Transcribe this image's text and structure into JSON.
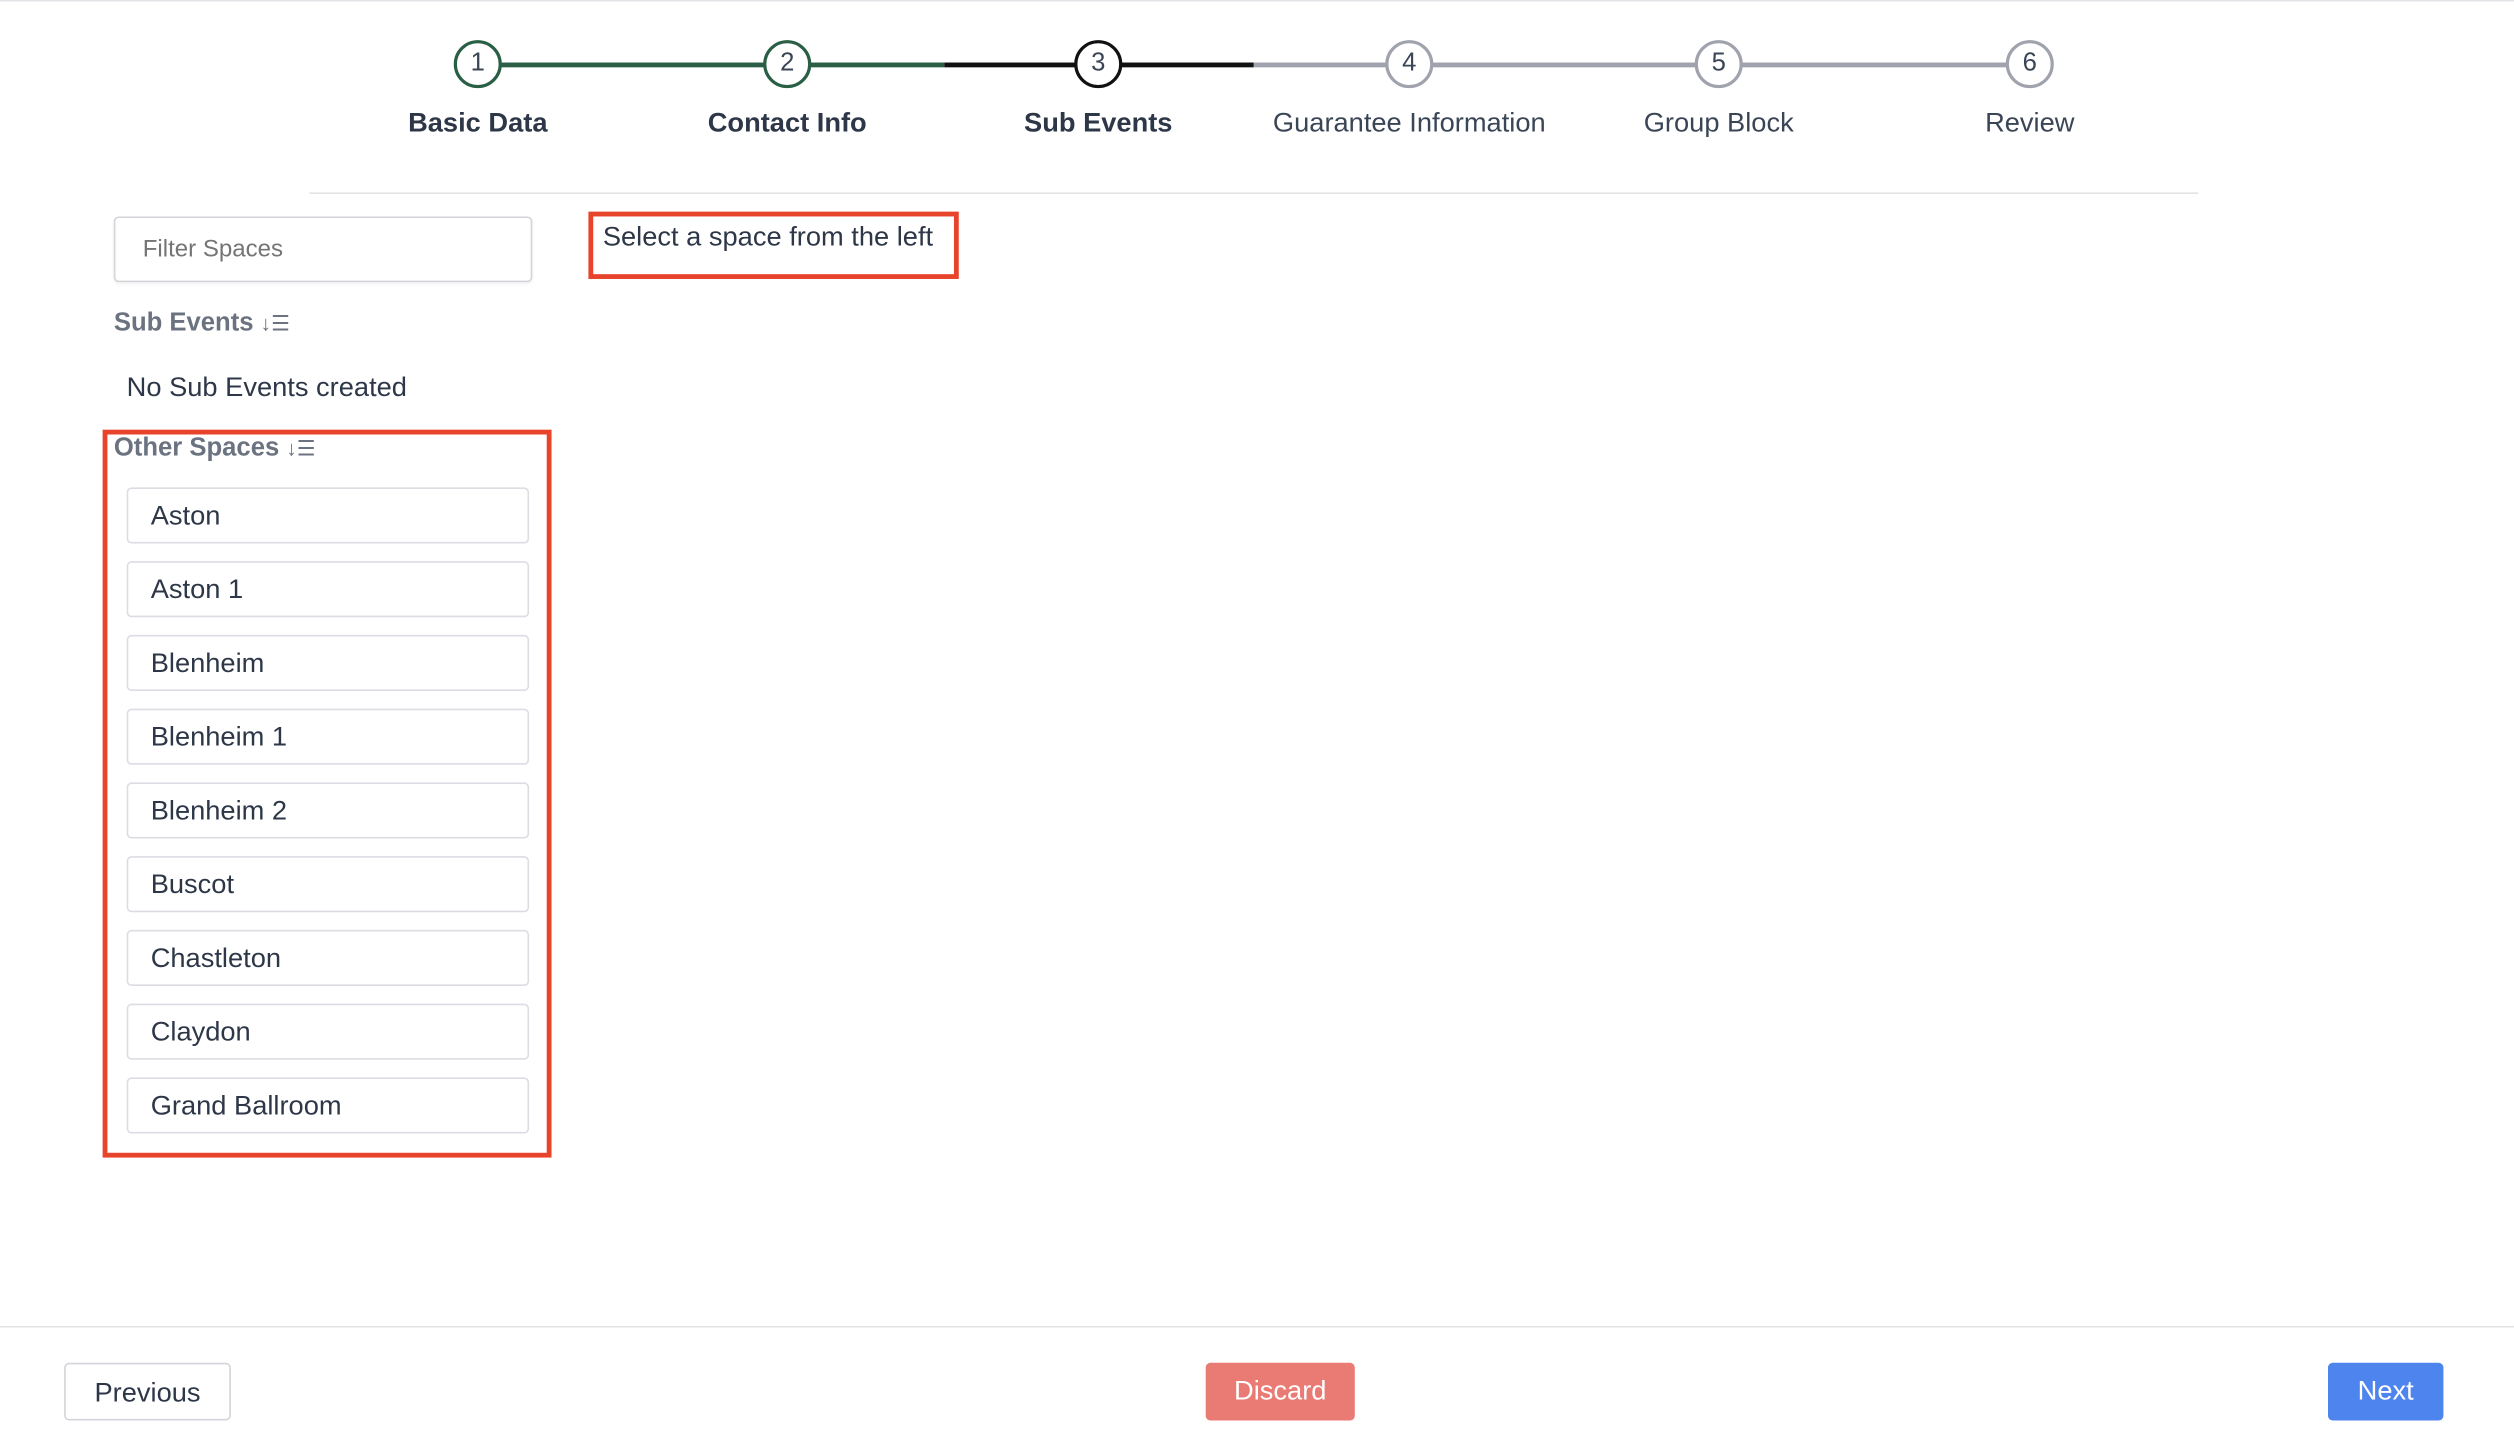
{
  "stepper": {
    "steps": [
      {
        "number": "1",
        "label": "Basic Data",
        "state": "completed"
      },
      {
        "number": "2",
        "label": "Contact Info",
        "state": "completed"
      },
      {
        "number": "3",
        "label": "Sub Events",
        "state": "current"
      },
      {
        "number": "4",
        "label": "Guarantee Information",
        "state": "upcoming"
      },
      {
        "number": "5",
        "label": "Group Block",
        "state": "upcoming"
      },
      {
        "number": "6",
        "label": "Review",
        "state": "upcoming"
      }
    ],
    "colors": {
      "completed": "#2a5e45",
      "current": "#111111",
      "upcoming": "#a0a3ad"
    }
  },
  "sidebar": {
    "filter_placeholder": "Filter Spaces",
    "sub_events_heading": "Sub Events",
    "sub_events_empty": "No Sub Events created",
    "other_spaces_heading": "Other Spaces",
    "sort_icon": "sort-descending-icon",
    "other_spaces": [
      "Aston",
      "Aston 1",
      "Blenheim",
      "Blenheim 1",
      "Blenheim 2",
      "Buscot",
      "Chastleton",
      "Claydon",
      "Grand Ballroom"
    ]
  },
  "main": {
    "placeholder_text": "Select a space from the left"
  },
  "footer": {
    "previous_label": "Previous",
    "discard_label": "Discard",
    "next_label": "Next",
    "discard_color": "#e97a74",
    "next_color": "#4d84ee"
  },
  "highlight_color": "#e8432b"
}
